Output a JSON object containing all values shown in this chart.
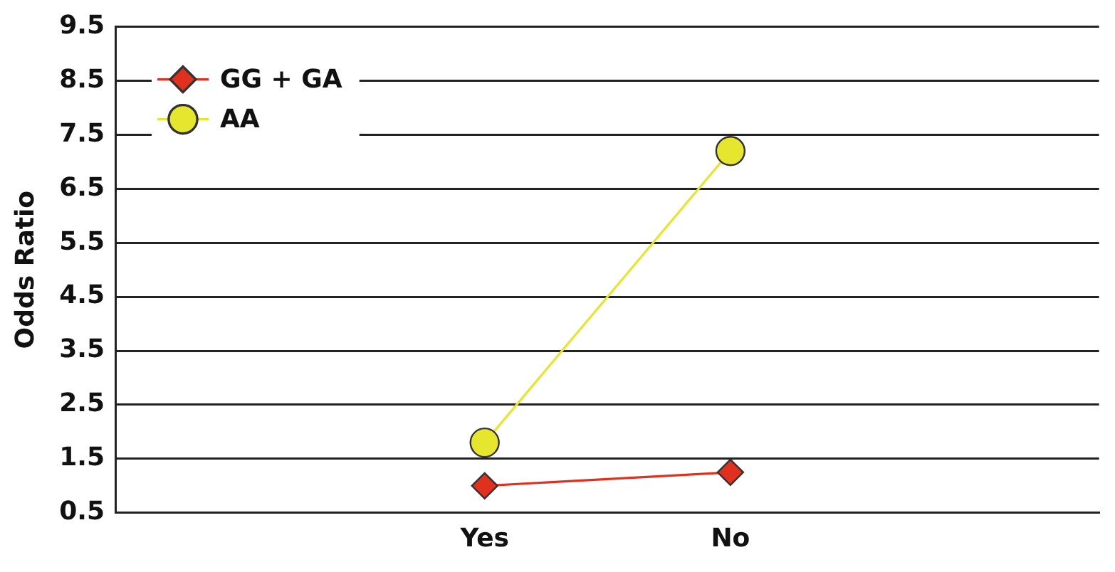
{
  "chart_data": {
    "type": "line",
    "ylabel": "Odds Ratio",
    "categories": [
      null,
      "Yes",
      "No",
      null
    ],
    "series": [
      {
        "name": "GG + GA",
        "color": "#e0301e",
        "marker": "diamond",
        "values": [
          null,
          1.0,
          1.25,
          null
        ]
      },
      {
        "name": "AA",
        "color": "#e6e62e",
        "marker": "circle",
        "values": [
          null,
          1.8,
          7.2,
          null
        ]
      }
    ],
    "ylim": [
      0.5,
      9.5
    ],
    "yticks": [
      0.5,
      1.5,
      2.5,
      3.5,
      4.5,
      5.5,
      6.5,
      7.5,
      8.5,
      9.5
    ],
    "grid": "y",
    "legend": "top left"
  }
}
